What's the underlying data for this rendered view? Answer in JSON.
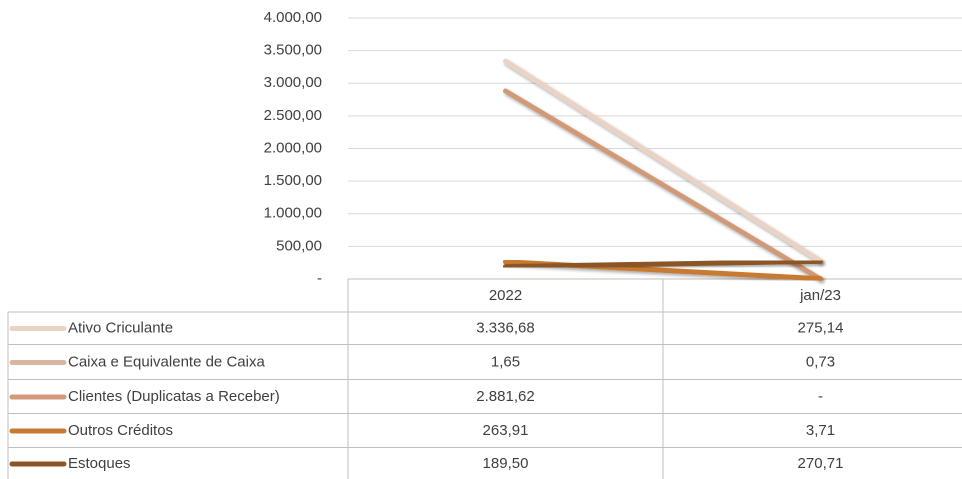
{
  "chart_data": {
    "type": "line",
    "categories": [
      "2022",
      "jan/23"
    ],
    "series": [
      {
        "name": "Ativo Criculante",
        "color": "#ead3c4",
        "values": [
          3336.68,
          275.14
        ],
        "value_labels": [
          "3.336,68",
          "275,14"
        ]
      },
      {
        "name": "Caixa e Equivalente de Caixa",
        "color": "#dab6a2",
        "values": [
          1.65,
          0.73
        ],
        "value_labels": [
          "1,65",
          "0,73"
        ]
      },
      {
        "name": "Clientes (Duplicatas a Receber)",
        "color": "#d09a78",
        "values": [
          2881.62,
          0
        ],
        "value_labels": [
          "2.881,62",
          "-"
        ]
      },
      {
        "name": "Outros Créditos",
        "color": "#c87a30",
        "values": [
          263.91,
          3.71
        ],
        "value_labels": [
          "263,91",
          "3,71"
        ]
      },
      {
        "name": "Estoques",
        "color": "#8b5526",
        "values": [
          189.5,
          270.71
        ],
        "value_labels": [
          "189,50",
          "270,71"
        ]
      }
    ],
    "ylim": [
      0,
      4000
    ],
    "yticks": [
      {
        "value": 0,
        "label": "-"
      },
      {
        "value": 500,
        "label": "500,00"
      },
      {
        "value": 1000,
        "label": "1.000,00"
      },
      {
        "value": 1500,
        "label": "1.500,00"
      },
      {
        "value": 2000,
        "label": "2.000,00"
      },
      {
        "value": 2500,
        "label": "2.500,00"
      },
      {
        "value": 3000,
        "label": "3.000,00"
      },
      {
        "value": 3500,
        "label": "3.500,00"
      },
      {
        "value": 4000,
        "label": "4.000,00"
      }
    ],
    "grid": true
  }
}
